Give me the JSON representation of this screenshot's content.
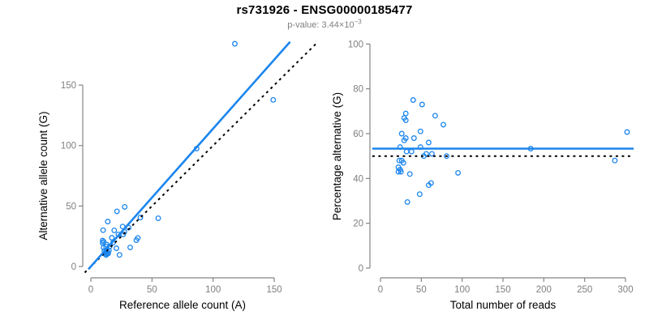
{
  "header": {
    "title": "rs731926 - ENSG00000185477",
    "subtitle_prefix": "p-value: 3.44×10",
    "subtitle_exponent": "−3"
  },
  "colors": {
    "accent_blue": "#1C86EE",
    "identity_black": "#000000",
    "axis_gray": "#858585",
    "tick_label_gray": "#7f7f7f",
    "axis_title_black": "#000000",
    "background": "#ffffff"
  },
  "chart_data": [
    {
      "id": "left",
      "type": "scatter",
      "title": "",
      "xlabel": "Reference allele count (A)",
      "ylabel": "Alternative allele count (G)",
      "xticks": [
        0,
        50,
        100,
        150
      ],
      "yticks": [
        0,
        50,
        100,
        150
      ],
      "xlim": [
        -7,
        192
      ],
      "ylim": [
        -8,
        192
      ],
      "grid": false,
      "marker": "open-circle",
      "points": [
        [
          10,
          30
        ],
        [
          13.8,
          37.2
        ],
        [
          9.6,
          21.4
        ],
        [
          9.6,
          19.4
        ],
        [
          10.5,
          20.5
        ],
        [
          21.4,
          45.6
        ],
        [
          27.7,
          49.3
        ],
        [
          19.1,
          29.9
        ],
        [
          10.4,
          15.6
        ],
        [
          13,
          18
        ],
        [
          12.5,
          16.5
        ],
        [
          17.2,
          23.8
        ],
        [
          26,
          33
        ],
        [
          11,
          13
        ],
        [
          15.4,
          16.6
        ],
        [
          18.2,
          19.8
        ],
        [
          22.5,
          26.5
        ],
        [
          26.5,
          26.5
        ],
        [
          27.4,
          28.6
        ],
        [
          30.9,
          32.1
        ],
        [
          40.5,
          40.5
        ],
        [
          12,
          11
        ],
        [
          13.5,
          12.5
        ],
        [
          14.8,
          13.2
        ],
        [
          12.1,
          9.9
        ],
        [
          13.4,
          10.6
        ],
        [
          12.5,
          9.5
        ],
        [
          14.2,
          10.8
        ],
        [
          20.9,
          15.1
        ],
        [
          55.1,
          39.9
        ],
        [
          37.2,
          21.8
        ],
        [
          38.4,
          23.6
        ],
        [
          32.2,
          15.8
        ],
        [
          23.4,
          9.6
        ],
        [
          86.5,
          97.5
        ],
        [
          117.8,
          184.2
        ],
        [
          149.2,
          137.8
        ]
      ],
      "lines": [
        {
          "name": "identity-line",
          "style": "dotted",
          "color": "#000000",
          "width": 2,
          "x1": -5,
          "y1": -5,
          "x2": 185,
          "y2": 185
        },
        {
          "name": "regression-line",
          "style": "solid",
          "color": "#1C86EE",
          "width": 2.6,
          "x1": -2,
          "y1": -2.3,
          "x2": 163,
          "y2": 185.8
        }
      ]
    },
    {
      "id": "right",
      "type": "scatter",
      "title": "",
      "xlabel": "Total number of reads",
      "ylabel": "Percentage alternative (G)",
      "xticks": [
        0,
        50,
        100,
        150,
        200,
        250,
        300
      ],
      "yticks": [
        0,
        20,
        40,
        60,
        80,
        100
      ],
      "xlim": [
        -12,
        312
      ],
      "ylim": [
        -4,
        104
      ],
      "grid": false,
      "marker": "open-circle",
      "points": [
        [
          40,
          75
        ],
        [
          51,
          73
        ],
        [
          31,
          69
        ],
        [
          29,
          67
        ],
        [
          31,
          66
        ],
        [
          67,
          68
        ],
        [
          77,
          64
        ],
        [
          49,
          61
        ],
        [
          26,
          60
        ],
        [
          31,
          58
        ],
        [
          29,
          57
        ],
        [
          41,
          58
        ],
        [
          59,
          56
        ],
        [
          24,
          54
        ],
        [
          32,
          52
        ],
        [
          38,
          52
        ],
        [
          49,
          54
        ],
        [
          53,
          50
        ],
        [
          56,
          51
        ],
        [
          63,
          51
        ],
        [
          81,
          50
        ],
        [
          23,
          48
        ],
        [
          26,
          48
        ],
        [
          28,
          47
        ],
        [
          22,
          45
        ],
        [
          24,
          44
        ],
        [
          22,
          43
        ],
        [
          25,
          43
        ],
        [
          36,
          42
        ],
        [
          95,
          42.5
        ],
        [
          59,
          37
        ],
        [
          62,
          38
        ],
        [
          48,
          33
        ],
        [
          33,
          29.5
        ],
        [
          184,
          53.3
        ],
        [
          302,
          60.7
        ],
        [
          287,
          48
        ]
      ],
      "lines": [
        {
          "name": "expected-50pct-line",
          "style": "dotted",
          "color": "#000000",
          "width": 2,
          "x1": -10,
          "y1": 50,
          "x2": 310,
          "y2": 50
        },
        {
          "name": "mean-percentage-line",
          "style": "solid",
          "color": "#1C86EE",
          "width": 2.6,
          "x1": -10,
          "y1": 53.3,
          "x2": 310,
          "y2": 53.3
        }
      ]
    }
  ]
}
